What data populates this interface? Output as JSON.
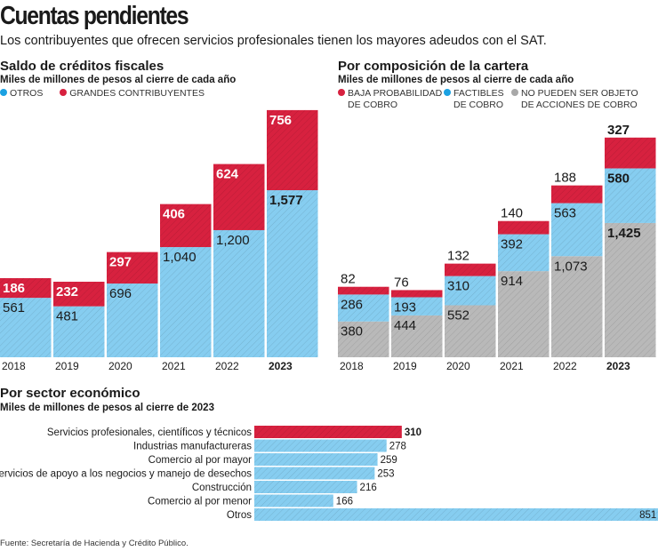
{
  "header": {
    "title": "Cuentas pendientes",
    "subtitle": "Los contribuyentes que ofrecen servicios profesionales tienen los mayores adeudos con el SAT."
  },
  "colors": {
    "red": "#d7213f",
    "blue": "#86cdf0",
    "gray": "#b9b9b9",
    "blue_dot": "#1ba1e2",
    "gray_dot": "#a8a8a8"
  },
  "chart_data": [
    {
      "type": "bar",
      "stacked": true,
      "title": "Saldo de créditos fiscales",
      "subtitle": "Miles de millones de pesos al cierre de cada año",
      "legend_position": "top-left",
      "categories": [
        "2018",
        "2019",
        "2020",
        "2021",
        "2022",
        "2023"
      ],
      "series": [
        {
          "name": "OTROS",
          "color": "#86cdf0",
          "values": [
            561,
            481,
            696,
            1040,
            1200,
            1577
          ],
          "labels": [
            "561",
            "481",
            "696",
            "1,040",
            "1,200",
            "1,577"
          ]
        },
        {
          "name": "GRANDES CONTRIBUYENTES",
          "color": "#d7213f",
          "values": [
            186,
            232,
            297,
            406,
            624,
            756
          ],
          "labels": [
            "186",
            "232",
            "297",
            "406",
            "624",
            "756"
          ]
        }
      ]
    },
    {
      "type": "bar",
      "stacked": true,
      "title": "Por composición de la cartera",
      "subtitle": "Miles de millones de pesos al cierre de cada año",
      "legend_position": "top-left",
      "categories": [
        "2018",
        "2019",
        "2020",
        "2021",
        "2022",
        "2023"
      ],
      "series": [
        {
          "name": "NO PUEDEN SER OBJETO DE ACCIONES DE COBRO",
          "color": "#b9b9b9",
          "values": [
            380,
            444,
            552,
            914,
            1073,
            1425
          ],
          "labels": [
            "380",
            "444",
            "552",
            "914",
            "1,073",
            "1,425"
          ]
        },
        {
          "name": "FACTIBLES DE COBRO",
          "color": "#86cdf0",
          "values": [
            286,
            193,
            310,
            392,
            563,
            580
          ],
          "labels": [
            "286",
            "193",
            "310",
            "392",
            "563",
            "580"
          ]
        },
        {
          "name": "BAJA PROBABILIDAD DE COBRO",
          "color": "#d7213f",
          "values": [
            82,
            76,
            132,
            140,
            188,
            327
          ],
          "labels": [
            "82",
            "76",
            "132",
            "140",
            "188",
            "327"
          ]
        }
      ],
      "legend": [
        {
          "line1": "BAJA PROBABILIDAD",
          "line2": "DE COBRO",
          "color": "#d7213f"
        },
        {
          "line1": "FACTIBLES",
          "line2": "DE COBRO",
          "color": "#1ba1e2"
        },
        {
          "line1": "NO PUEDEN SER OBJETO",
          "line2": "DE ACCIONES DE COBRO",
          "color": "#a8a8a8"
        }
      ]
    },
    {
      "type": "bar",
      "orientation": "horizontal",
      "title": "Por sector económico",
      "subtitle": "Miles de millones de pesos al cierre de 2023",
      "categories": [
        "Servicios profesionales, científicos y técnicos",
        "Industrias manufactureras",
        "Comercio al por mayor",
        "Servicios de apoyo a los negocios y manejo de desechos",
        "Construcción",
        "Comercio al por menor",
        "Otros"
      ],
      "values": [
        310,
        278,
        259,
        253,
        216,
        166,
        851
      ],
      "highlight_index": 0
    }
  ],
  "source": "Fuente: Secretaría de Hacienda y Crédito Público."
}
